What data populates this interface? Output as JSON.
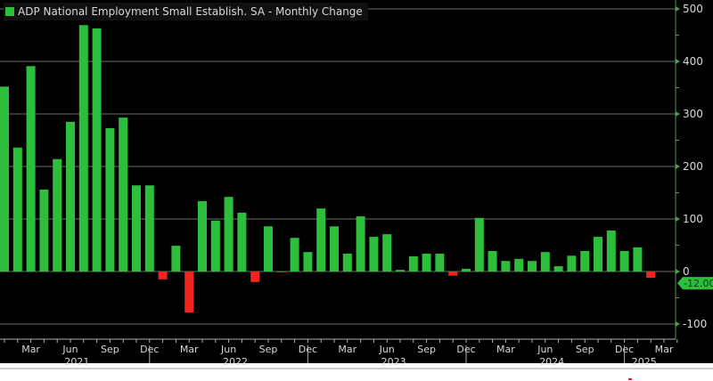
{
  "chart_data": {
    "type": "bar",
    "title": "ADP National Employment Small Establish. SA - Monthly Change",
    "legend": [
      "ADP National Employment Small Establish. SA - Monthly Change"
    ],
    "legend_position": "top-left",
    "ylim": [
      -120,
      520
    ],
    "yticks": [
      500,
      400,
      300,
      200,
      100,
      0,
      -100
    ],
    "ytick_labels": [
      "500",
      "400",
      "300",
      "200",
      "100",
      "0",
      "-100"
    ],
    "grid": true,
    "last_value_label": "-12.00",
    "x_month_labels": [
      "Mar",
      "Jun",
      "Sep",
      "Dec",
      "Mar",
      "Jun",
      "Sep",
      "Dec",
      "Mar",
      "Jun",
      "Sep",
      "Dec",
      "Mar",
      "Jun",
      "Sep",
      "Dec",
      "Mar"
    ],
    "x_year_labels": [
      "2021",
      "2022",
      "2023",
      "2024",
      "2025"
    ],
    "categories": [
      "Jan 2021",
      "Feb 2021",
      "Mar 2021",
      "Apr 2021",
      "May 2021",
      "Jun 2021",
      "Jul 2021",
      "Aug 2021",
      "Sep 2021",
      "Oct 2021",
      "Nov 2021",
      "Dec 2021",
      "Jan 2022",
      "Feb 2022",
      "Mar 2022",
      "Apr 2022",
      "May 2022",
      "Jun 2022",
      "Jul 2022",
      "Aug 2022",
      "Sep 2022",
      "Oct 2022",
      "Nov 2022",
      "Dec 2022",
      "Jan 2023",
      "Feb 2023",
      "Mar 2023",
      "Apr 2023",
      "May 2023",
      "Jun 2023",
      "Jul 2023",
      "Aug 2023",
      "Sep 2023",
      "Oct 2023",
      "Nov 2023",
      "Dec 2023",
      "Jan 2024",
      "Feb 2024",
      "Mar 2024",
      "Apr 2024",
      "May 2024",
      "Jun 2024",
      "Jul 2024",
      "Aug 2024",
      "Sep 2024",
      "Oct 2024",
      "Nov 2024",
      "Dec 2024",
      "Jan 2025",
      "Feb 2025"
    ],
    "values": [
      352,
      236,
      391,
      156,
      214,
      285,
      469,
      463,
      273,
      293,
      164,
      164,
      -15,
      49,
      -78,
      134,
      97,
      142,
      112,
      -20,
      86,
      -1,
      64,
      37,
      120,
      86,
      34,
      105,
      66,
      71,
      3,
      29,
      34,
      34,
      -8,
      5,
      102,
      39,
      20,
      24,
      20,
      37,
      10,
      30,
      39,
      66,
      78,
      39,
      46,
      -12
    ],
    "colors": {
      "positive": "#2dbf3c",
      "negative": "#f0261e",
      "background": "#000000",
      "grid": "#6b6b6b",
      "axis": "#4f9a55",
      "text": "#d8d8d8"
    }
  }
}
